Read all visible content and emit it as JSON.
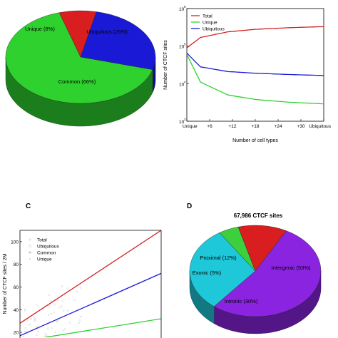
{
  "panels": {
    "c_letter": "C",
    "d_letter": "D"
  },
  "chart_data": [
    {
      "id": "A",
      "type": "pie",
      "labels": [
        "Unique (8%)",
        "Ubiquitous (26%)",
        "Common (66%)"
      ],
      "values": [
        8,
        26,
        66
      ],
      "colors": [
        "#d81e1e",
        "#1a1ad6",
        "#2fd12f"
      ],
      "style": "3d"
    },
    {
      "id": "B",
      "type": "line",
      "xlabel": "Number of cell types",
      "ylabel": "Number of CTCF sites",
      "yscale": "log",
      "ylim": [
        1000,
        1000000
      ],
      "ytick_base": "10",
      "ytick_exponents": [
        "3",
        "4",
        "5",
        "6"
      ],
      "xtick_labels": [
        "Unique",
        "+6",
        "+12",
        "+18",
        "+24",
        "+30",
        "Ubiquitous"
      ],
      "legend_position": "top-left",
      "series": [
        {
          "name": "Total",
          "color": "#d42020",
          "x": [
            0,
            0.1,
            0.3,
            0.5,
            0.75,
            1
          ],
          "y": [
            90000,
            170000,
            240000,
            280000,
            310000,
            330000
          ]
        },
        {
          "name": "Unique",
          "color": "#2fd12f",
          "x": [
            0,
            0.1,
            0.3,
            0.5,
            0.75,
            1
          ],
          "y": [
            60000,
            11000,
            5000,
            3800,
            3200,
            2900
          ]
        },
        {
          "name": "Ubiquitous",
          "color": "#1a1ad6",
          "x": [
            0,
            0.1,
            0.3,
            0.5,
            0.75,
            1
          ],
          "y": [
            65000,
            28000,
            21000,
            19000,
            17500,
            16500
          ]
        }
      ]
    },
    {
      "id": "C",
      "type": "scatter",
      "ylabel": "Number of CTCF sites / 2M",
      "ylim": [
        20,
        110
      ],
      "ytick_labels": [
        "20",
        "40",
        "60",
        "80",
        "100"
      ],
      "ytick_values": [
        20,
        40,
        60,
        80,
        100
      ],
      "legend_position": "top-left",
      "legend": [
        {
          "name": "Total",
          "marker": "+",
          "color": "#c8c8c8"
        },
        {
          "name": "Ubiquitous",
          "marker": "o",
          "color": "#c8c8c8"
        },
        {
          "name": "Common",
          "marker": "*",
          "color": "#b0b0b0"
        },
        {
          "name": "Unique",
          "marker": ".",
          "color": "#b0b0b0"
        }
      ],
      "fit_lines": [
        {
          "name": "Total",
          "color": "#d42020",
          "x": [
            0,
            1
          ],
          "y": [
            28,
            110
          ]
        },
        {
          "name": "Ubiquitous",
          "color": "#1a1ad6",
          "x": [
            0,
            1
          ],
          "y": [
            17,
            72
          ]
        },
        {
          "name": "Common",
          "color": "#2fd12f",
          "x": [
            0,
            1
          ],
          "y": [
            12,
            32
          ]
        }
      ]
    },
    {
      "id": "D",
      "type": "pie",
      "title": "67,986 CTCF sites",
      "labels": [
        "Intergenic (53%)",
        "Intronic (30%)",
        "Exonic (5%)",
        "Proximal (12%)"
      ],
      "values": [
        53,
        30,
        5,
        12
      ],
      "colors": [
        "#8a24e0",
        "#1ec8d8",
        "#3cd03c",
        "#d81e1e"
      ],
      "style": "3d"
    }
  ]
}
